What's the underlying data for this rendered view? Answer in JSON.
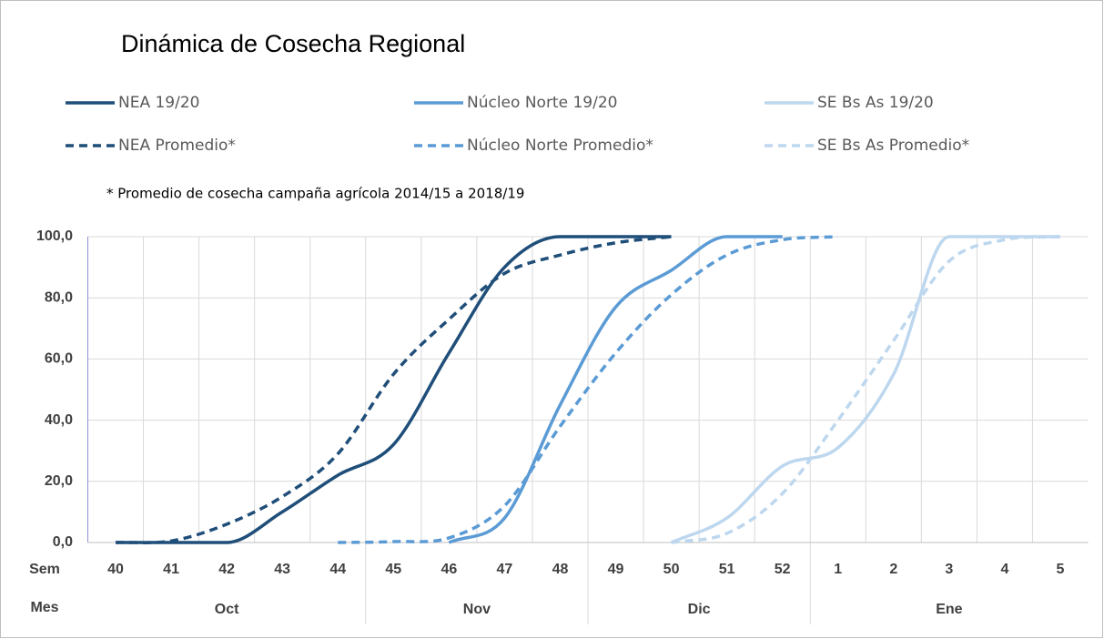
{
  "chart_data": {
    "type": "line",
    "title": "Dinámica de Cosecha Regional",
    "note": "* Promedio de cosecha campaña agrícola 2014/15  a 2018/19",
    "week_row_label": "Sem",
    "month_row_label": "Mes",
    "categories": [
      "40",
      "41",
      "42",
      "43",
      "44",
      "45",
      "46",
      "47",
      "48",
      "49",
      "50",
      "51",
      "52",
      "1",
      "2",
      "3",
      "4",
      "5"
    ],
    "months": [
      "Oct",
      "Oct",
      "Oct",
      "Oct",
      "Oct",
      "Nov",
      "Nov",
      "Nov",
      "Nov",
      "Dic",
      "Dic",
      "Dic",
      "Dic",
      "Ene",
      "Ene",
      "Ene",
      "Ene",
      "Ene"
    ],
    "ylim": [
      0,
      100
    ],
    "yticks": [
      {
        "value": 0,
        "label": "0,0"
      },
      {
        "value": 20,
        "label": "20,0"
      },
      {
        "value": 40,
        "label": "40,0"
      },
      {
        "value": 60,
        "label": "60,0"
      },
      {
        "value": 80,
        "label": "80,0"
      },
      {
        "value": 100,
        "label": "100,0"
      }
    ],
    "grid": true,
    "series": [
      {
        "name": "NEA 19/20",
        "color": "#1f4e79",
        "dashed": false,
        "values": [
          0,
          0,
          0,
          10,
          22,
          32,
          62,
          90,
          100,
          100,
          100,
          null,
          null,
          null,
          null,
          null,
          null,
          null
        ]
      },
      {
        "name": "Núcleo Norte 19/20",
        "color": "#5b9bd5",
        "dashed": false,
        "values": [
          null,
          null,
          null,
          null,
          null,
          null,
          0,
          8,
          45,
          77,
          89,
          100,
          100,
          null,
          null,
          null,
          null,
          null
        ]
      },
      {
        "name": "SE Bs As 19/20",
        "color": "#bdd7ee",
        "dashed": false,
        "values": [
          null,
          null,
          null,
          null,
          null,
          null,
          null,
          null,
          null,
          null,
          0,
          8,
          25,
          31,
          55,
          100,
          100,
          100
        ]
      },
      {
        "name": "NEA Promedio*",
        "color": "#1f4e79",
        "dashed": true,
        "values": [
          0,
          0.5,
          6,
          15,
          29,
          55,
          73,
          88,
          94,
          98,
          100,
          null,
          null,
          null,
          null,
          null,
          null,
          null
        ]
      },
      {
        "name": "Núcleo Norte Promedio*",
        "color": "#5b9bd5",
        "dashed": true,
        "values": [
          null,
          null,
          null,
          null,
          0,
          0.3,
          1.5,
          12,
          38,
          62,
          81,
          94,
          99,
          100,
          null,
          null,
          null,
          null
        ]
      },
      {
        "name": "SE Bs As Promedio*",
        "color": "#bdd7ee",
        "dashed": true,
        "values": [
          null,
          null,
          null,
          null,
          null,
          null,
          null,
          null,
          null,
          null,
          0,
          3,
          16,
          40,
          66,
          92,
          99,
          100
        ]
      }
    ]
  }
}
